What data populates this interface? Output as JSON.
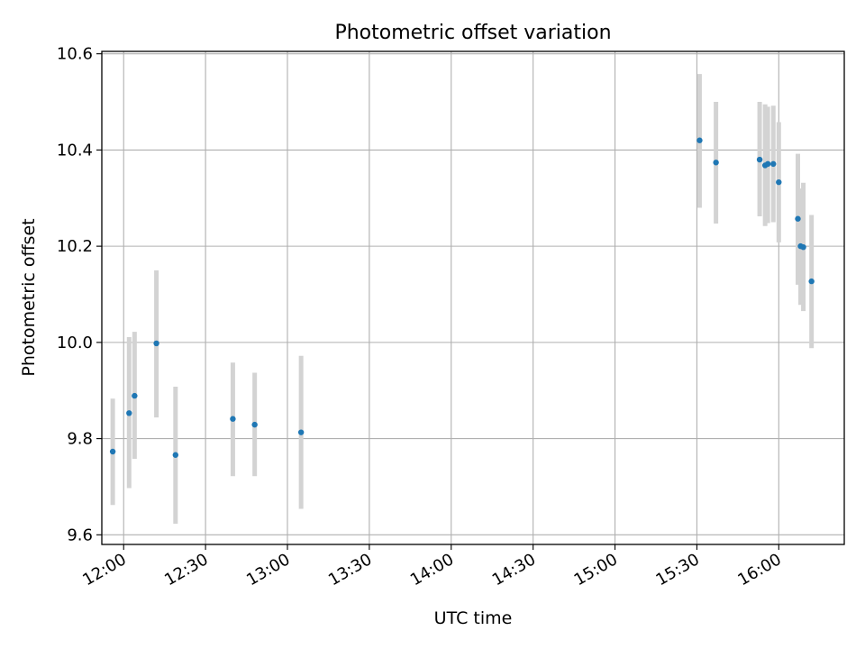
{
  "chart_data": {
    "type": "scatter",
    "title": "Photometric offset variation",
    "xlabel": "UTC time",
    "ylabel": "Photometric offset",
    "x_unit": "time",
    "xlim": [
      "11:52",
      "16:24"
    ],
    "ylim": [
      9.58,
      10.605
    ],
    "xticks": [
      "12:00",
      "12:30",
      "13:00",
      "13:30",
      "14:00",
      "14:30",
      "15:00",
      "15:30",
      "16:00"
    ],
    "yticks": [
      "9.6",
      "9.8",
      "10.0",
      "10.2",
      "10.4",
      "10.6"
    ],
    "grid": true,
    "legend": "none",
    "colors": {
      "points": "#1f77b4",
      "errorbars": "#d3d3d3",
      "grid": "#b0b0b0"
    },
    "points": [
      {
        "x": "11:56",
        "y": 9.773,
        "ylow": 9.662,
        "yhigh": 9.883
      },
      {
        "x": "12:02",
        "y": 9.853,
        "ylow": 9.697,
        "yhigh": 10.011
      },
      {
        "x": "12:04",
        "y": 9.889,
        "ylow": 9.758,
        "yhigh": 10.022
      },
      {
        "x": "12:12",
        "y": 9.998,
        "ylow": 9.844,
        "yhigh": 10.15
      },
      {
        "x": "12:19",
        "y": 9.766,
        "ylow": 9.623,
        "yhigh": 9.908
      },
      {
        "x": "12:40",
        "y": 9.841,
        "ylow": 9.722,
        "yhigh": 9.958
      },
      {
        "x": "12:48",
        "y": 9.829,
        "ylow": 9.722,
        "yhigh": 9.937
      },
      {
        "x": "13:05",
        "y": 9.813,
        "ylow": 9.654,
        "yhigh": 9.972
      },
      {
        "x": "15:31",
        "y": 10.42,
        "ylow": 10.28,
        "yhigh": 10.558
      },
      {
        "x": "15:37",
        "y": 10.374,
        "ylow": 10.247,
        "yhigh": 10.5
      },
      {
        "x": "15:53",
        "y": 10.38,
        "ylow": 10.262,
        "yhigh": 10.5
      },
      {
        "x": "15:55",
        "y": 10.368,
        "ylow": 10.242,
        "yhigh": 10.495
      },
      {
        "x": "15:56",
        "y": 10.371,
        "ylow": 10.248,
        "yhigh": 10.49
      },
      {
        "x": "15:58",
        "y": 10.371,
        "ylow": 10.25,
        "yhigh": 10.492
      },
      {
        "x": "16:00",
        "y": 10.333,
        "ylow": 10.208,
        "yhigh": 10.458
      },
      {
        "x": "16:07",
        "y": 10.257,
        "ylow": 10.12,
        "yhigh": 10.392
      },
      {
        "x": "16:08",
        "y": 10.2,
        "ylow": 10.078,
        "yhigh": 10.32
      },
      {
        "x": "16:09",
        "y": 10.198,
        "ylow": 10.065,
        "yhigh": 10.332
      },
      {
        "x": "16:12",
        "y": 10.127,
        "ylow": 9.988,
        "yhigh": 10.265
      }
    ]
  }
}
